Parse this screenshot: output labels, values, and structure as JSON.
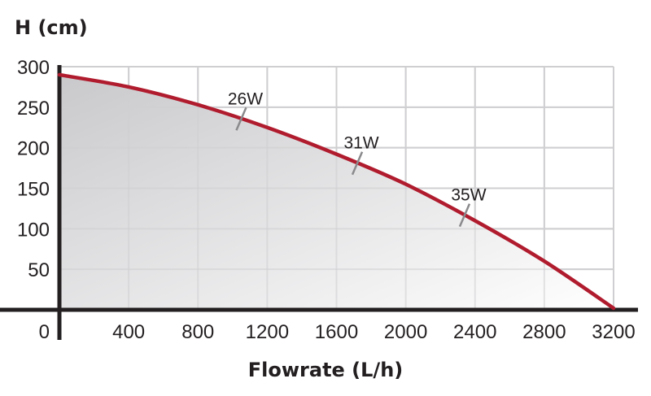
{
  "chart_data": {
    "type": "area",
    "title": "",
    "xlabel": "Flowrate (L/h)",
    "ylabel": "H (cm)",
    "xlim": [
      0,
      3200
    ],
    "ylim": [
      0,
      300
    ],
    "x_ticks": [
      "400",
      "800",
      "1200",
      "1600",
      "2000",
      "2400",
      "2800",
      "3200"
    ],
    "y_ticks": [
      "0",
      "50",
      "100",
      "150",
      "200",
      "250",
      "300"
    ],
    "grid": true,
    "legend": "none",
    "line_color": "#b01c2e",
    "series": [
      {
        "x": [
          0,
          400,
          800,
          1200,
          1600,
          2000,
          2400,
          2800,
          3200
        ],
        "y": [
          290,
          275,
          253,
          225,
          192,
          155,
          110,
          60,
          2
        ]
      }
    ],
    "annotations": [
      {
        "label": "26W",
        "x": 1050
      },
      {
        "label": "31W",
        "x": 1720
      },
      {
        "label": "35W",
        "x": 2340
      }
    ]
  }
}
